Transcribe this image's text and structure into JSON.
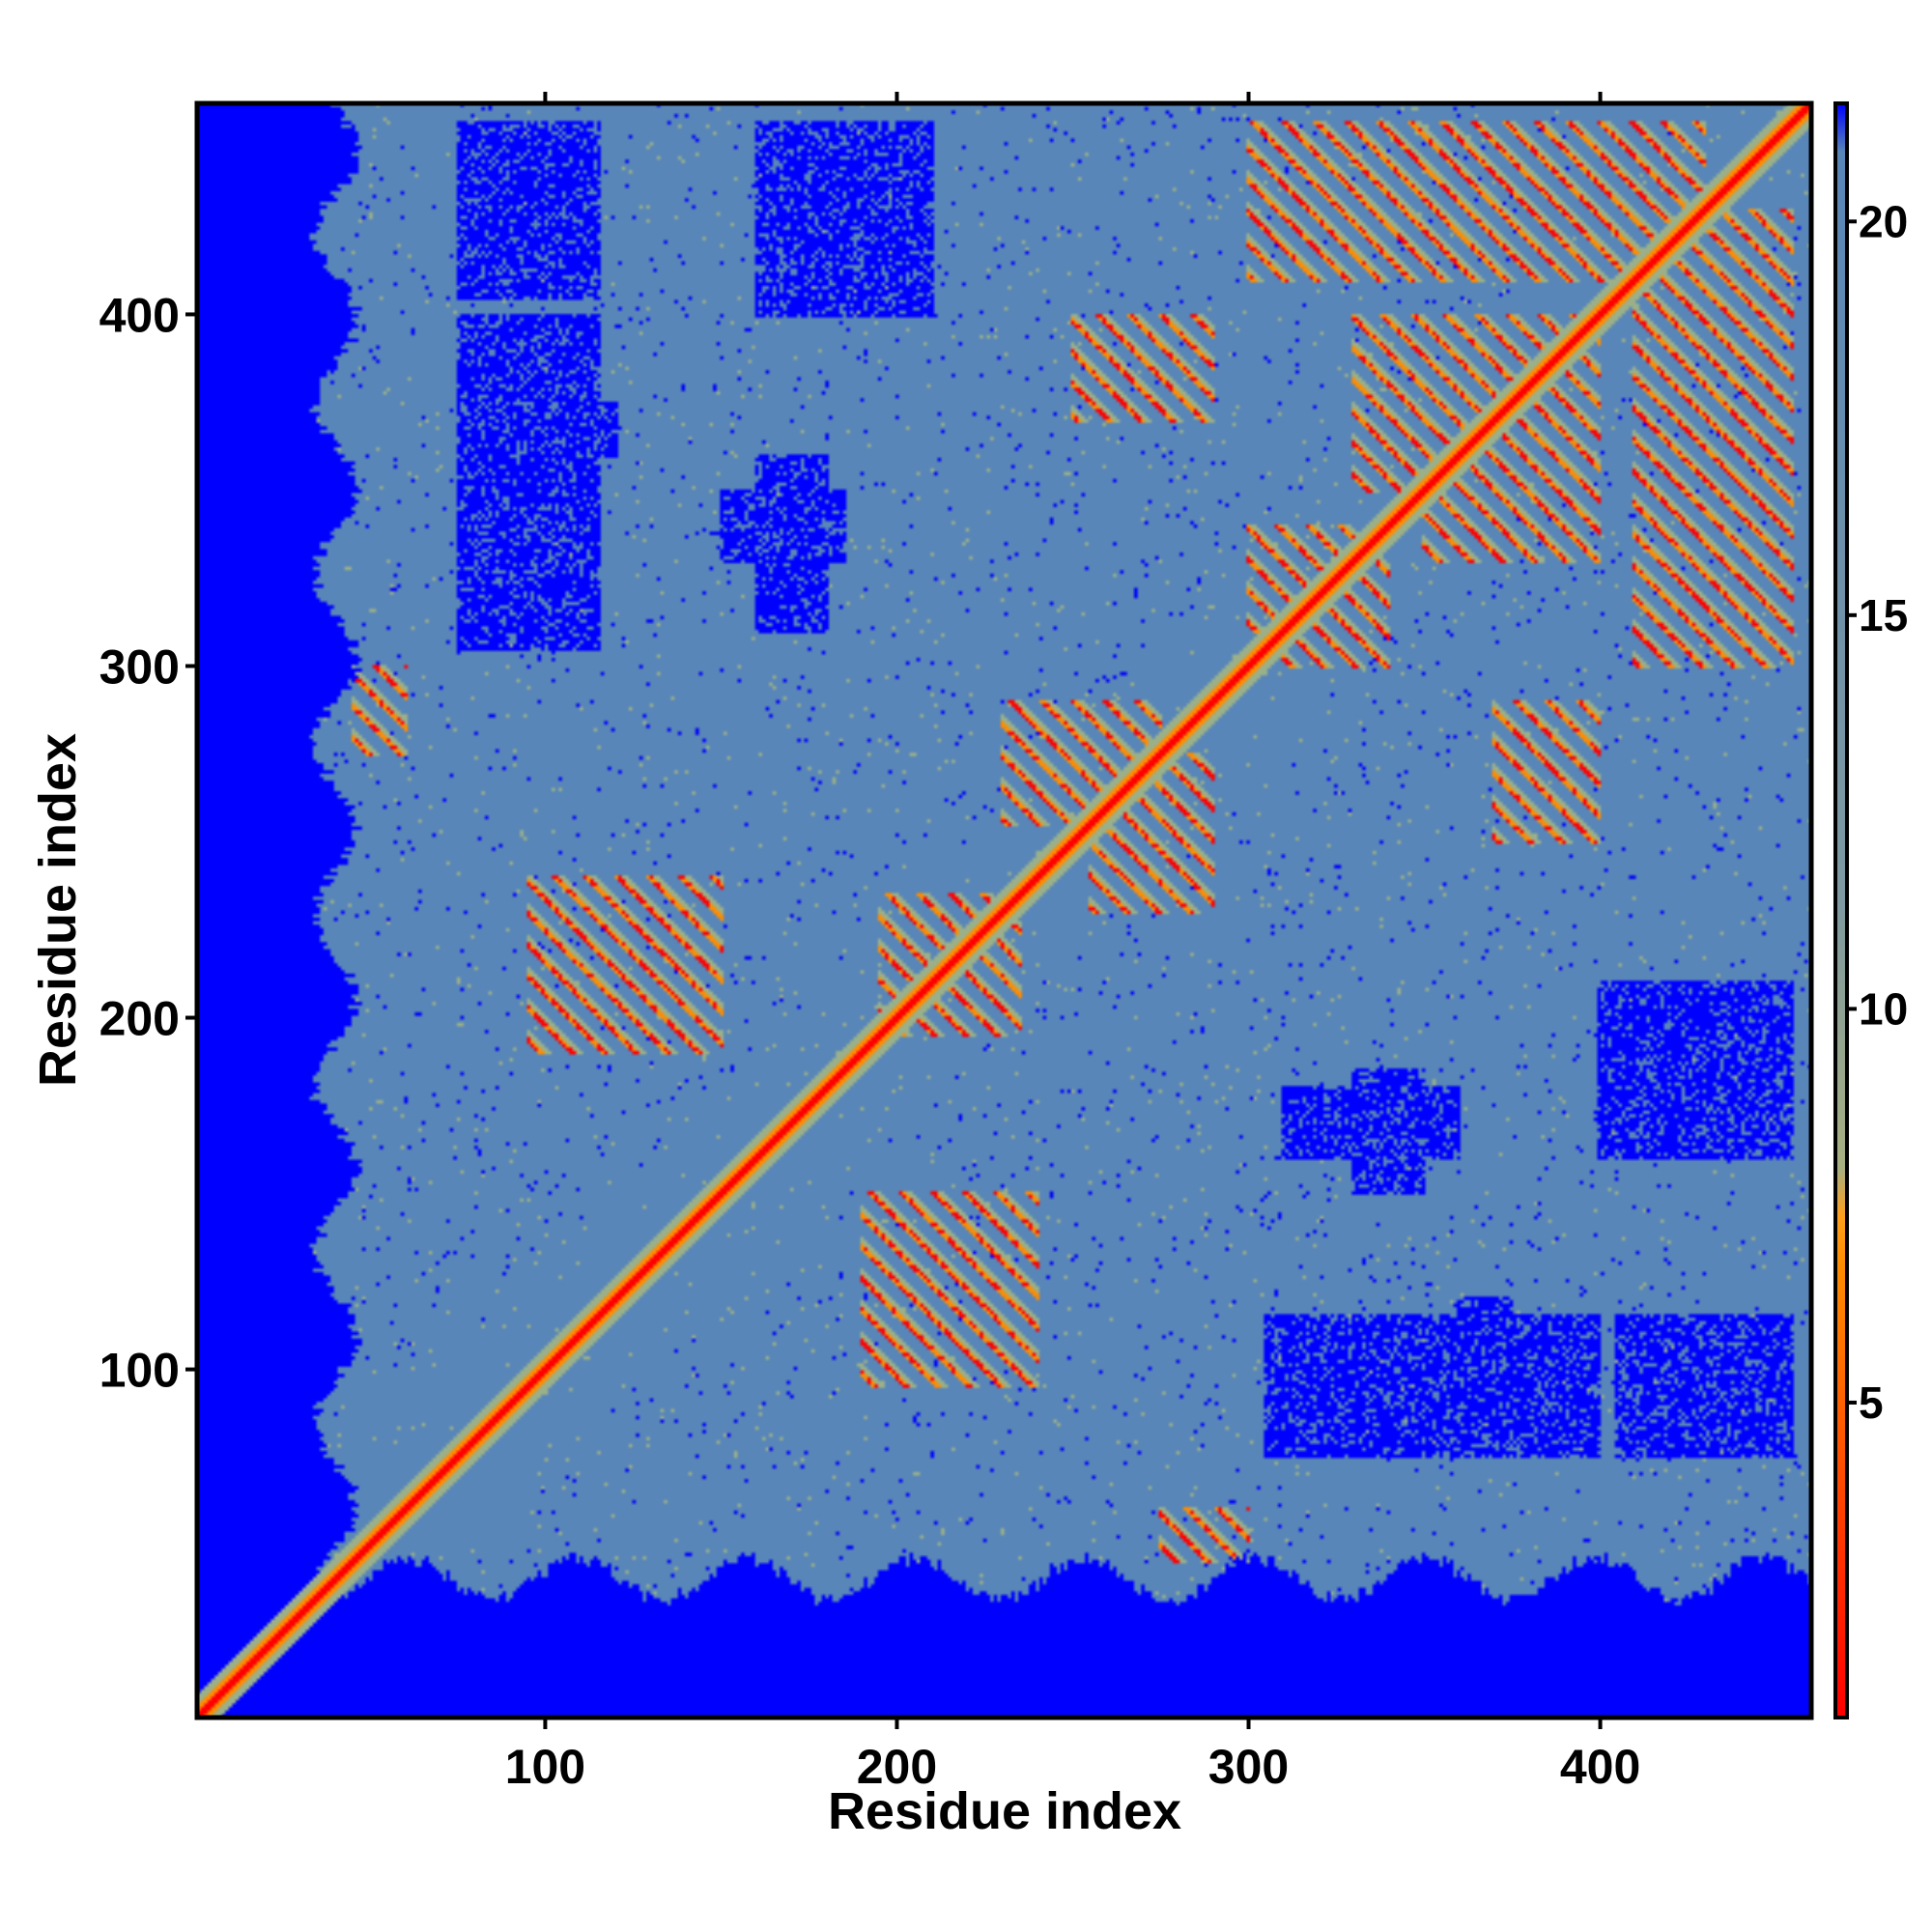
{
  "chart_data": {
    "type": "heatmap",
    "xlabel": "Residue index",
    "ylabel": "Residue index",
    "n_residues": 460,
    "xlim": [
      1,
      460
    ],
    "ylim": [
      1,
      460
    ],
    "x_ticks": [
      100,
      200,
      300,
      400
    ],
    "y_ticks": [
      100,
      200,
      300,
      400
    ],
    "colorbar": {
      "ticks": [
        5,
        10,
        15,
        20
      ],
      "range": [
        1,
        21.5
      ],
      "colors": {
        "near": "#ff0000",
        "mid_low": "#ff8c00",
        "mid": "#9ab08a",
        "far": "#5886b8",
        "very_far": "#0000ff"
      }
    },
    "structure": {
      "diagonal": "red line of near-zero distance along x = y",
      "contact_bands": [
        {
          "x": [
            45,
            60
          ],
          "y": [
            275,
            300
          ]
        },
        {
          "x": [
            95,
            150
          ],
          "y": [
            190,
            240
          ]
        },
        {
          "x": [
            200,
            235
          ],
          "y": [
            195,
            235
          ]
        },
        {
          "x": [
            255,
            290
          ],
          "y": [
            230,
            275
          ]
        },
        {
          "x": [
            300,
            340
          ],
          "y": [
            300,
            340
          ]
        },
        {
          "x": [
            350,
            400
          ],
          "y": [
            330,
            400
          ]
        },
        {
          "x": [
            410,
            455
          ],
          "y": [
            300,
            430
          ]
        },
        {
          "x": [
            300,
            330
          ],
          "y": [
            435,
            455
          ]
        },
        {
          "x": [
            250,
            290
          ],
          "y": [
            370,
            400
          ]
        }
      ],
      "far_blocks": [
        {
          "x": [
            75,
            115
          ],
          "y": [
            405,
            445
          ]
        },
        {
          "x": [
            160,
            200
          ],
          "y": [
            405,
            445
          ]
        },
        {
          "x": [
            75,
            120
          ],
          "y": [
            360,
            375
          ]
        },
        {
          "x": [
            75,
            115
          ],
          "y": [
            305,
            345
          ]
        },
        {
          "x": [
            150,
            185
          ],
          "y": [
            330,
            350
          ]
        },
        {
          "x": [
            310,
            400
          ],
          "y": [
            75,
            115
          ]
        },
        {
          "x": [
            410,
            455
          ],
          "y": [
            75,
            115
          ]
        },
        {
          "x": [
            400,
            455
          ],
          "y": [
            160,
            210
          ]
        },
        {
          "x": [
            310,
            360
          ],
          "y": [
            160,
            180
          ]
        }
      ]
    }
  }
}
